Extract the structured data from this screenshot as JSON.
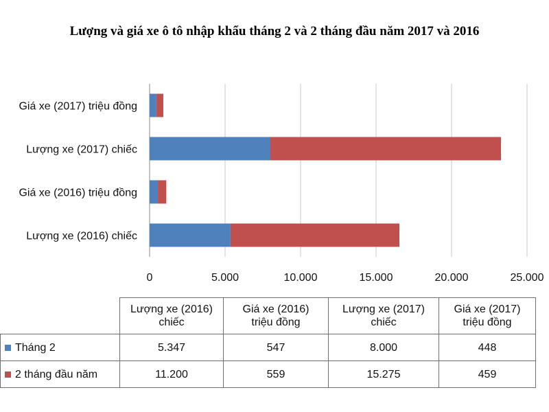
{
  "title": "Lượng và giá xe ô tô nhập khẩu tháng 2 và 2 tháng đầu năm 2017 và 2016",
  "colors": {
    "series1": "#4f81bd",
    "series2": "#c0504d",
    "grid": "#c8c8c8",
    "axis": "#888888"
  },
  "chart_data": {
    "type": "bar",
    "orientation": "horizontal",
    "stacked": true,
    "title": "Lượng và giá xe ô tô nhập khẩu tháng 2 và 2 tháng đầu năm 2017 và 2016",
    "categories": [
      "Lượng xe (2016) chiếc",
      "Giá xe (2016) triệu đồng",
      "Lượng xe (2017) chiếc",
      "Giá xe (2017) triệu đồng"
    ],
    "series": [
      {
        "name": "Tháng 2",
        "values": [
          5347,
          547,
          8000,
          448
        ],
        "color": "#4f81bd"
      },
      {
        "name": "2 tháng đầu năm",
        "values": [
          11200,
          559,
          15275,
          459
        ],
        "color": "#c0504d"
      }
    ],
    "xlim": [
      0,
      25000
    ],
    "xticks": [
      0,
      5000,
      10000,
      15000,
      20000,
      25000
    ],
    "xtick_labels": [
      "0",
      "5.000",
      "10.000",
      "15.000",
      "20.000",
      "25.000"
    ],
    "grid": true,
    "legend": "data table below chart"
  },
  "table": {
    "headers": [
      "Lượng xe (2016) chiếc",
      "Giá xe (2016) triệu đồng",
      "Lượng xe (2017) chiếc",
      "Giá xe (2017) triệu đồng"
    ],
    "rows": [
      {
        "label": "Tháng 2",
        "cells": [
          "5.347",
          "547",
          "8.000",
          "448"
        ]
      },
      {
        "label": "2 tháng đầu năm",
        "cells": [
          "11.200",
          "559",
          "15.275",
          "459"
        ]
      }
    ]
  }
}
